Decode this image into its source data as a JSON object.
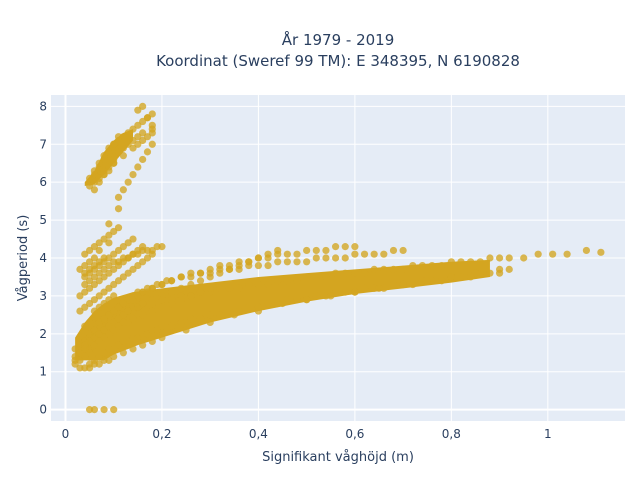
{
  "chart_data": {
    "type": "scatter",
    "title_line1": "År 1979 - 2019",
    "title_line2": "Koordinat (Sweref 99 TM): E 348395, N 6190828",
    "xlabel": "Signifikant våghöjd (m)",
    "ylabel": "Vågperiod (s)",
    "xlim": [
      -0.03,
      1.16
    ],
    "ylim": [
      -0.3,
      8.3
    ],
    "x_ticks": [
      0,
      0.2,
      0.4,
      0.6,
      0.8,
      1
    ],
    "x_tick_labels": [
      "0",
      "0,2",
      "0,4",
      "0,6",
      "0,8",
      "1"
    ],
    "y_ticks": [
      0,
      1,
      2,
      3,
      4,
      5,
      6,
      7,
      8
    ],
    "y_tick_labels": [
      "0",
      "1",
      "2",
      "3",
      "4",
      "5",
      "6",
      "7",
      "8"
    ],
    "grid": true,
    "marker_color": "#d4a520",
    "plot_bg": "#e5ecf6",
    "series": [
      {
        "x": [
          0.02,
          0.02,
          0.03,
          0.03,
          0.04,
          0.04,
          0.05,
          0.05,
          0.06,
          0.06,
          0.07,
          0.07,
          0.08,
          0.08,
          0.09,
          0.09,
          0.1,
          0.1,
          0.11,
          0.12,
          0.13,
          0.14,
          0.15,
          0.16,
          0.18,
          0.2,
          0.22,
          0.24,
          0.26,
          0.28,
          0.3,
          0.32,
          0.34,
          0.36,
          0.38,
          0.4,
          0.42,
          0.44,
          0.46,
          0.48,
          0.5,
          0.52,
          0.54,
          0.56,
          0.58,
          0.6,
          0.62,
          0.64,
          0.66,
          0.68,
          0.7,
          0.72,
          0.74,
          0.76,
          0.78,
          0.8,
          0.82,
          0.84,
          0.86,
          0.88,
          0.9,
          0.92,
          0.95,
          0.98,
          1.01,
          1.04,
          1.08,
          1.11,
          0.05,
          0.06,
          0.07,
          0.08,
          0.09,
          0.1,
          0.11,
          0.12,
          0.13,
          0.14,
          0.15,
          0.16,
          0.17,
          0.18,
          0.19,
          0.2,
          0.22,
          0.24,
          0.26,
          0.28,
          0.3,
          0.32,
          0.34,
          0.36,
          0.38,
          0.4,
          0.42,
          0.44,
          0.46,
          0.48,
          0.5,
          0.52,
          0.54,
          0.56,
          0.58,
          0.6,
          0.62,
          0.64,
          0.66,
          0.68,
          0.7,
          0.72,
          0.74,
          0.76,
          0.78,
          0.8,
          0.82,
          0.84,
          0.86,
          0.88,
          0.9,
          0.92,
          0.03,
          0.04,
          0.05,
          0.06,
          0.07,
          0.08,
          0.09,
          0.1,
          0.12,
          0.14,
          0.16,
          0.18,
          0.2,
          0.25,
          0.3,
          0.35,
          0.4,
          0.45,
          0.5,
          0.55,
          0.6,
          0.65,
          0.7,
          0.75,
          0.8,
          0.85,
          0.9,
          0.04,
          0.05,
          0.06,
          0.07,
          0.08,
          0.09,
          0.1,
          0.11,
          0.12,
          0.13,
          0.14,
          0.15,
          0.16,
          0.17,
          0.18,
          0.19,
          0.2,
          0.21,
          0.22,
          0.24,
          0.26,
          0.28,
          0.3,
          0.32,
          0.34,
          0.36,
          0.38,
          0.4,
          0.42,
          0.44,
          0.46,
          0.48,
          0.5,
          0.52,
          0.54,
          0.56,
          0.58,
          0.6,
          0.62,
          0.64,
          0.66,
          0.68,
          0.7,
          0.03,
          0.04,
          0.05,
          0.06,
          0.07,
          0.08,
          0.09,
          0.1,
          0.11,
          0.12,
          0.13,
          0.14,
          0.15,
          0.16,
          0.17,
          0.18,
          0.2,
          0.22,
          0.24,
          0.26,
          0.28,
          0.3,
          0.32,
          0.34,
          0.36,
          0.38,
          0.4,
          0.42,
          0.44,
          0.46,
          0.48,
          0.5,
          0.52,
          0.54,
          0.56,
          0.58,
          0.6,
          0.02,
          0.03,
          0.04,
          0.05,
          0.06,
          0.07,
          0.08,
          0.09,
          0.1,
          0.11,
          0.12,
          0.13,
          0.14,
          0.15,
          0.16,
          0.18,
          0.2,
          0.22,
          0.24,
          0.26,
          0.28,
          0.3,
          0.32,
          0.34,
          0.36,
          0.38,
          0.4,
          0.42,
          0.44,
          0.02,
          0.03,
          0.04,
          0.05,
          0.06,
          0.07,
          0.08,
          0.09,
          0.1,
          0.11,
          0.12,
          0.13,
          0.14,
          0.16,
          0.18,
          0.2,
          0.22,
          0.24,
          0.26,
          0.28,
          0.3,
          0.04,
          0.05,
          0.06,
          0.07,
          0.08,
          0.09,
          0.1,
          0.11,
          0.12,
          0.13,
          0.14,
          0.15,
          0.16,
          0.17,
          0.18,
          0.19,
          0.2,
          0.04,
          0.05,
          0.06,
          0.07,
          0.08,
          0.09,
          0.1,
          0.11,
          0.12,
          0.13,
          0.14,
          0.03,
          0.04,
          0.05,
          0.06,
          0.07,
          0.08,
          0.09,
          0.1,
          0.11,
          0.12,
          0.13,
          0.14,
          0.15,
          0.16,
          0.03,
          0.04,
          0.05,
          0.06,
          0.07,
          0.08,
          0.09,
          0.1,
          0.11,
          0.12,
          0.13,
          0.14,
          0.15,
          0.16,
          0.17,
          0.18,
          0.05,
          0.06,
          0.07,
          0.08,
          0.09,
          0.1,
          0.11,
          0.12,
          0.13,
          0.14,
          0.15,
          0.16,
          0.17,
          0.18,
          0.06,
          0.07,
          0.08,
          0.09,
          0.1,
          0.11,
          0.12,
          0.13,
          0.14,
          0.15,
          0.16,
          0.18,
          0.08,
          0.1,
          0.12,
          0.14,
          0.15,
          0.16,
          0.17,
          0.18,
          0.05,
          0.06,
          0.07,
          0.08,
          0.09,
          0.1,
          0.11,
          0.05,
          0.06,
          0.07,
          0.08,
          0.09,
          0.1,
          0.04,
          0.05,
          0.06,
          0.07,
          0.08,
          0.09,
          0.1,
          0.11,
          0.03,
          0.04,
          0.05,
          0.06,
          0.07,
          0.09,
          0.11,
          0.05,
          0.06,
          0.08,
          0.1,
          0.11,
          0.12,
          0.13,
          0.14,
          0.15,
          0.16,
          0.17,
          0.18,
          0.15,
          0.16,
          0.17,
          0.18,
          0.04,
          0.05,
          0.06,
          0.07,
          0.08,
          0.09
        ],
        "y": [
          1.3,
          1.6,
          1.4,
          1.9,
          1.7,
          2.2,
          1.6,
          2.3,
          1.9,
          2.6,
          2.0,
          2.7,
          2.1,
          2.8,
          2.2,
          2.9,
          2.3,
          3.0,
          2.4,
          2.5,
          2.6,
          2.6,
          2.7,
          2.8,
          2.8,
          2.9,
          2.9,
          3.0,
          3.0,
          3.1,
          3.1,
          3.2,
          3.2,
          3.2,
          3.3,
          3.3,
          3.3,
          3.4,
          3.4,
          3.4,
          3.5,
          3.5,
          3.5,
          3.6,
          3.6,
          3.6,
          3.6,
          3.7,
          3.7,
          3.7,
          3.7,
          3.8,
          3.8,
          3.8,
          3.8,
          3.9,
          3.9,
          3.9,
          3.9,
          4.0,
          4.0,
          4.0,
          4.0,
          4.1,
          4.1,
          4.1,
          4.2,
          4.15,
          1.2,
          1.3,
          1.4,
          1.5,
          1.6,
          1.6,
          1.7,
          1.8,
          1.8,
          1.9,
          1.9,
          2.0,
          2.0,
          2.1,
          2.1,
          2.2,
          2.2,
          2.3,
          2.4,
          2.4,
          2.5,
          2.5,
          2.6,
          2.6,
          2.7,
          2.7,
          2.8,
          2.8,
          2.9,
          2.9,
          2.9,
          3.0,
          3.0,
          3.1,
          3.1,
          3.1,
          3.2,
          3.2,
          3.2,
          3.3,
          3.3,
          3.3,
          3.4,
          3.4,
          3.4,
          3.5,
          3.5,
          3.5,
          3.6,
          3.6,
          3.6,
          3.7,
          1.1,
          1.1,
          1.1,
          1.2,
          1.2,
          1.3,
          1.3,
          1.4,
          1.5,
          1.6,
          1.7,
          1.8,
          1.9,
          2.1,
          2.3,
          2.5,
          2.6,
          2.8,
          2.9,
          3.0,
          3.1,
          3.2,
          3.3,
          3.4,
          3.5,
          3.6,
          3.7,
          1.8,
          2.0,
          2.1,
          2.3,
          2.4,
          2.5,
          2.6,
          2.7,
          2.8,
          2.9,
          3.0,
          3.1,
          3.1,
          3.2,
          3.2,
          3.3,
          3.3,
          3.4,
          3.4,
          3.5,
          3.5,
          3.6,
          3.6,
          3.7,
          3.7,
          3.7,
          3.8,
          3.8,
          3.8,
          3.9,
          3.9,
          3.9,
          3.9,
          4.0,
          4.0,
          4.0,
          4.0,
          4.1,
          4.1,
          4.1,
          4.1,
          4.2,
          4.2,
          1.5,
          1.7,
          1.9,
          2.1,
          2.3,
          2.4,
          2.5,
          2.6,
          2.7,
          2.8,
          2.9,
          2.9,
          3.0,
          3.1,
          3.1,
          3.2,
          3.3,
          3.4,
          3.5,
          3.6,
          3.6,
          3.7,
          3.8,
          3.8,
          3.9,
          3.9,
          4.0,
          4.0,
          4.1,
          4.1,
          4.1,
          4.2,
          4.2,
          4.2,
          4.3,
          4.3,
          4.3,
          1.4,
          1.5,
          1.6,
          1.8,
          1.9,
          2.0,
          2.1,
          2.2,
          2.3,
          2.4,
          2.5,
          2.6,
          2.7,
          2.7,
          2.8,
          2.9,
          3.0,
          3.1,
          3.2,
          3.3,
          3.4,
          3.5,
          3.6,
          3.7,
          3.8,
          3.9,
          4.0,
          4.1,
          4.2,
          1.2,
          1.3,
          1.4,
          1.5,
          1.7,
          1.8,
          1.9,
          2.0,
          2.1,
          2.2,
          2.3,
          2.3,
          2.4,
          2.5,
          2.6,
          2.7,
          2.8,
          2.9,
          3.0,
          3.1,
          3.2,
          3.3,
          3.4,
          3.5,
          3.6,
          3.7,
          3.8,
          3.9,
          3.9,
          4.0,
          4.0,
          4.1,
          4.1,
          4.2,
          4.2,
          4.2,
          4.3,
          4.3,
          3.5,
          3.6,
          3.7,
          3.8,
          3.9,
          4.0,
          4.1,
          4.2,
          4.3,
          4.4,
          4.5,
          3.0,
          3.1,
          3.2,
          3.3,
          3.4,
          3.5,
          3.6,
          3.7,
          3.8,
          3.9,
          4.0,
          4.1,
          4.2,
          4.3,
          2.6,
          2.7,
          2.8,
          2.9,
          3.0,
          3.1,
          3.2,
          3.3,
          3.4,
          3.5,
          3.6,
          3.7,
          3.8,
          3.9,
          4.0,
          4.1,
          6.0,
          6.2,
          6.4,
          6.6,
          6.8,
          7.0,
          7.1,
          7.2,
          7.3,
          7.4,
          7.5,
          7.6,
          7.7,
          7.8,
          5.8,
          6.0,
          6.2,
          6.4,
          6.6,
          6.8,
          6.9,
          7.0,
          7.1,
          7.2,
          7.3,
          7.4,
          6.3,
          6.5,
          6.7,
          6.9,
          7.0,
          7.1,
          7.2,
          7.3,
          6.1,
          6.3,
          6.5,
          6.7,
          6.9,
          7.0,
          7.2,
          5.9,
          6.0,
          6.1,
          6.2,
          6.3,
          6.5,
          4.1,
          4.2,
          4.3,
          4.4,
          4.5,
          4.6,
          4.7,
          4.8,
          3.7,
          3.8,
          3.9,
          4.0,
          4.2,
          4.9,
          5.3,
          0.0,
          0.0,
          0.0,
          0.0,
          5.6,
          5.8,
          6.0,
          6.2,
          6.4,
          6.6,
          6.8,
          7.0,
          7.9,
          8.0,
          7.7,
          7.5,
          3.6,
          3.7,
          3.8,
          3.9,
          4.0,
          4.4
        ]
      }
    ]
  }
}
